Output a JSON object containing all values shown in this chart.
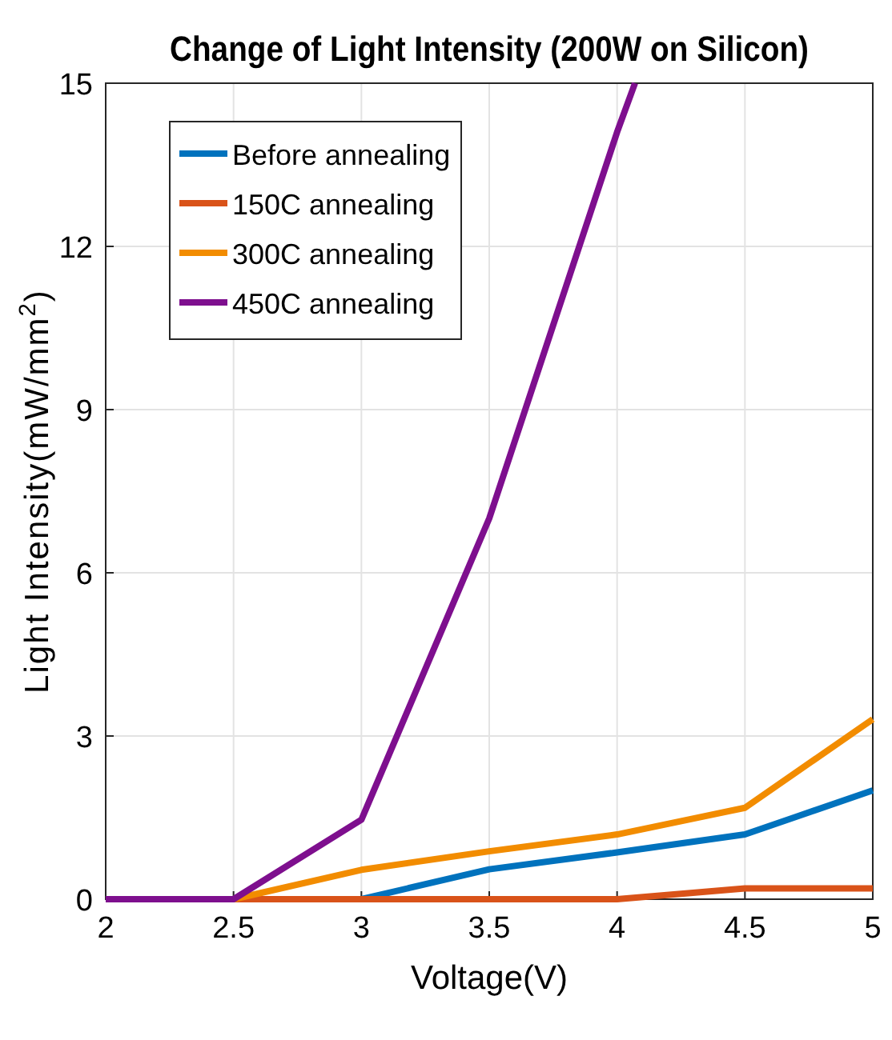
{
  "chart_data": {
    "type": "line",
    "title": "Change of Light Intensity (200W on Silicon)",
    "xlabel": "Voltage(V)",
    "ylabel": "Light Intensity(mW/mm$^{2}$)",
    "x": [
      2,
      2.5,
      3,
      3.5,
      4,
      4.5,
      5
    ],
    "series": [
      {
        "name": "Before annealing",
        "color": "#0072bd",
        "values": [
          0,
          0,
          0,
          0.55,
          0.86,
          1.19,
          2.0
        ]
      },
      {
        "name": "150C annealing",
        "color": "#d95319",
        "values": [
          0,
          0,
          0,
          0,
          0,
          0.2,
          0.2
        ]
      },
      {
        "name": "300C annealing",
        "color": "#f28c00",
        "values": [
          0,
          0,
          0.54,
          0.88,
          1.19,
          1.68,
          3.31
        ]
      },
      {
        "name": "450C annealing",
        "color": "#7e0f8e",
        "x": [
          2,
          2.5,
          3,
          3.5,
          4,
          4.07
        ],
        "values": [
          0,
          0,
          1.46,
          7.0,
          14.1,
          15
        ]
      }
    ],
    "xlim": [
      2,
      5
    ],
    "ylim": [
      0,
      15
    ],
    "xticks": [
      2,
      2.5,
      3,
      3.5,
      4,
      4.5,
      5
    ],
    "yticks": [
      0,
      3,
      6,
      9,
      12,
      15
    ],
    "grid": true,
    "legend": "top left",
    "line_style": "solid",
    "marker": "none"
  }
}
